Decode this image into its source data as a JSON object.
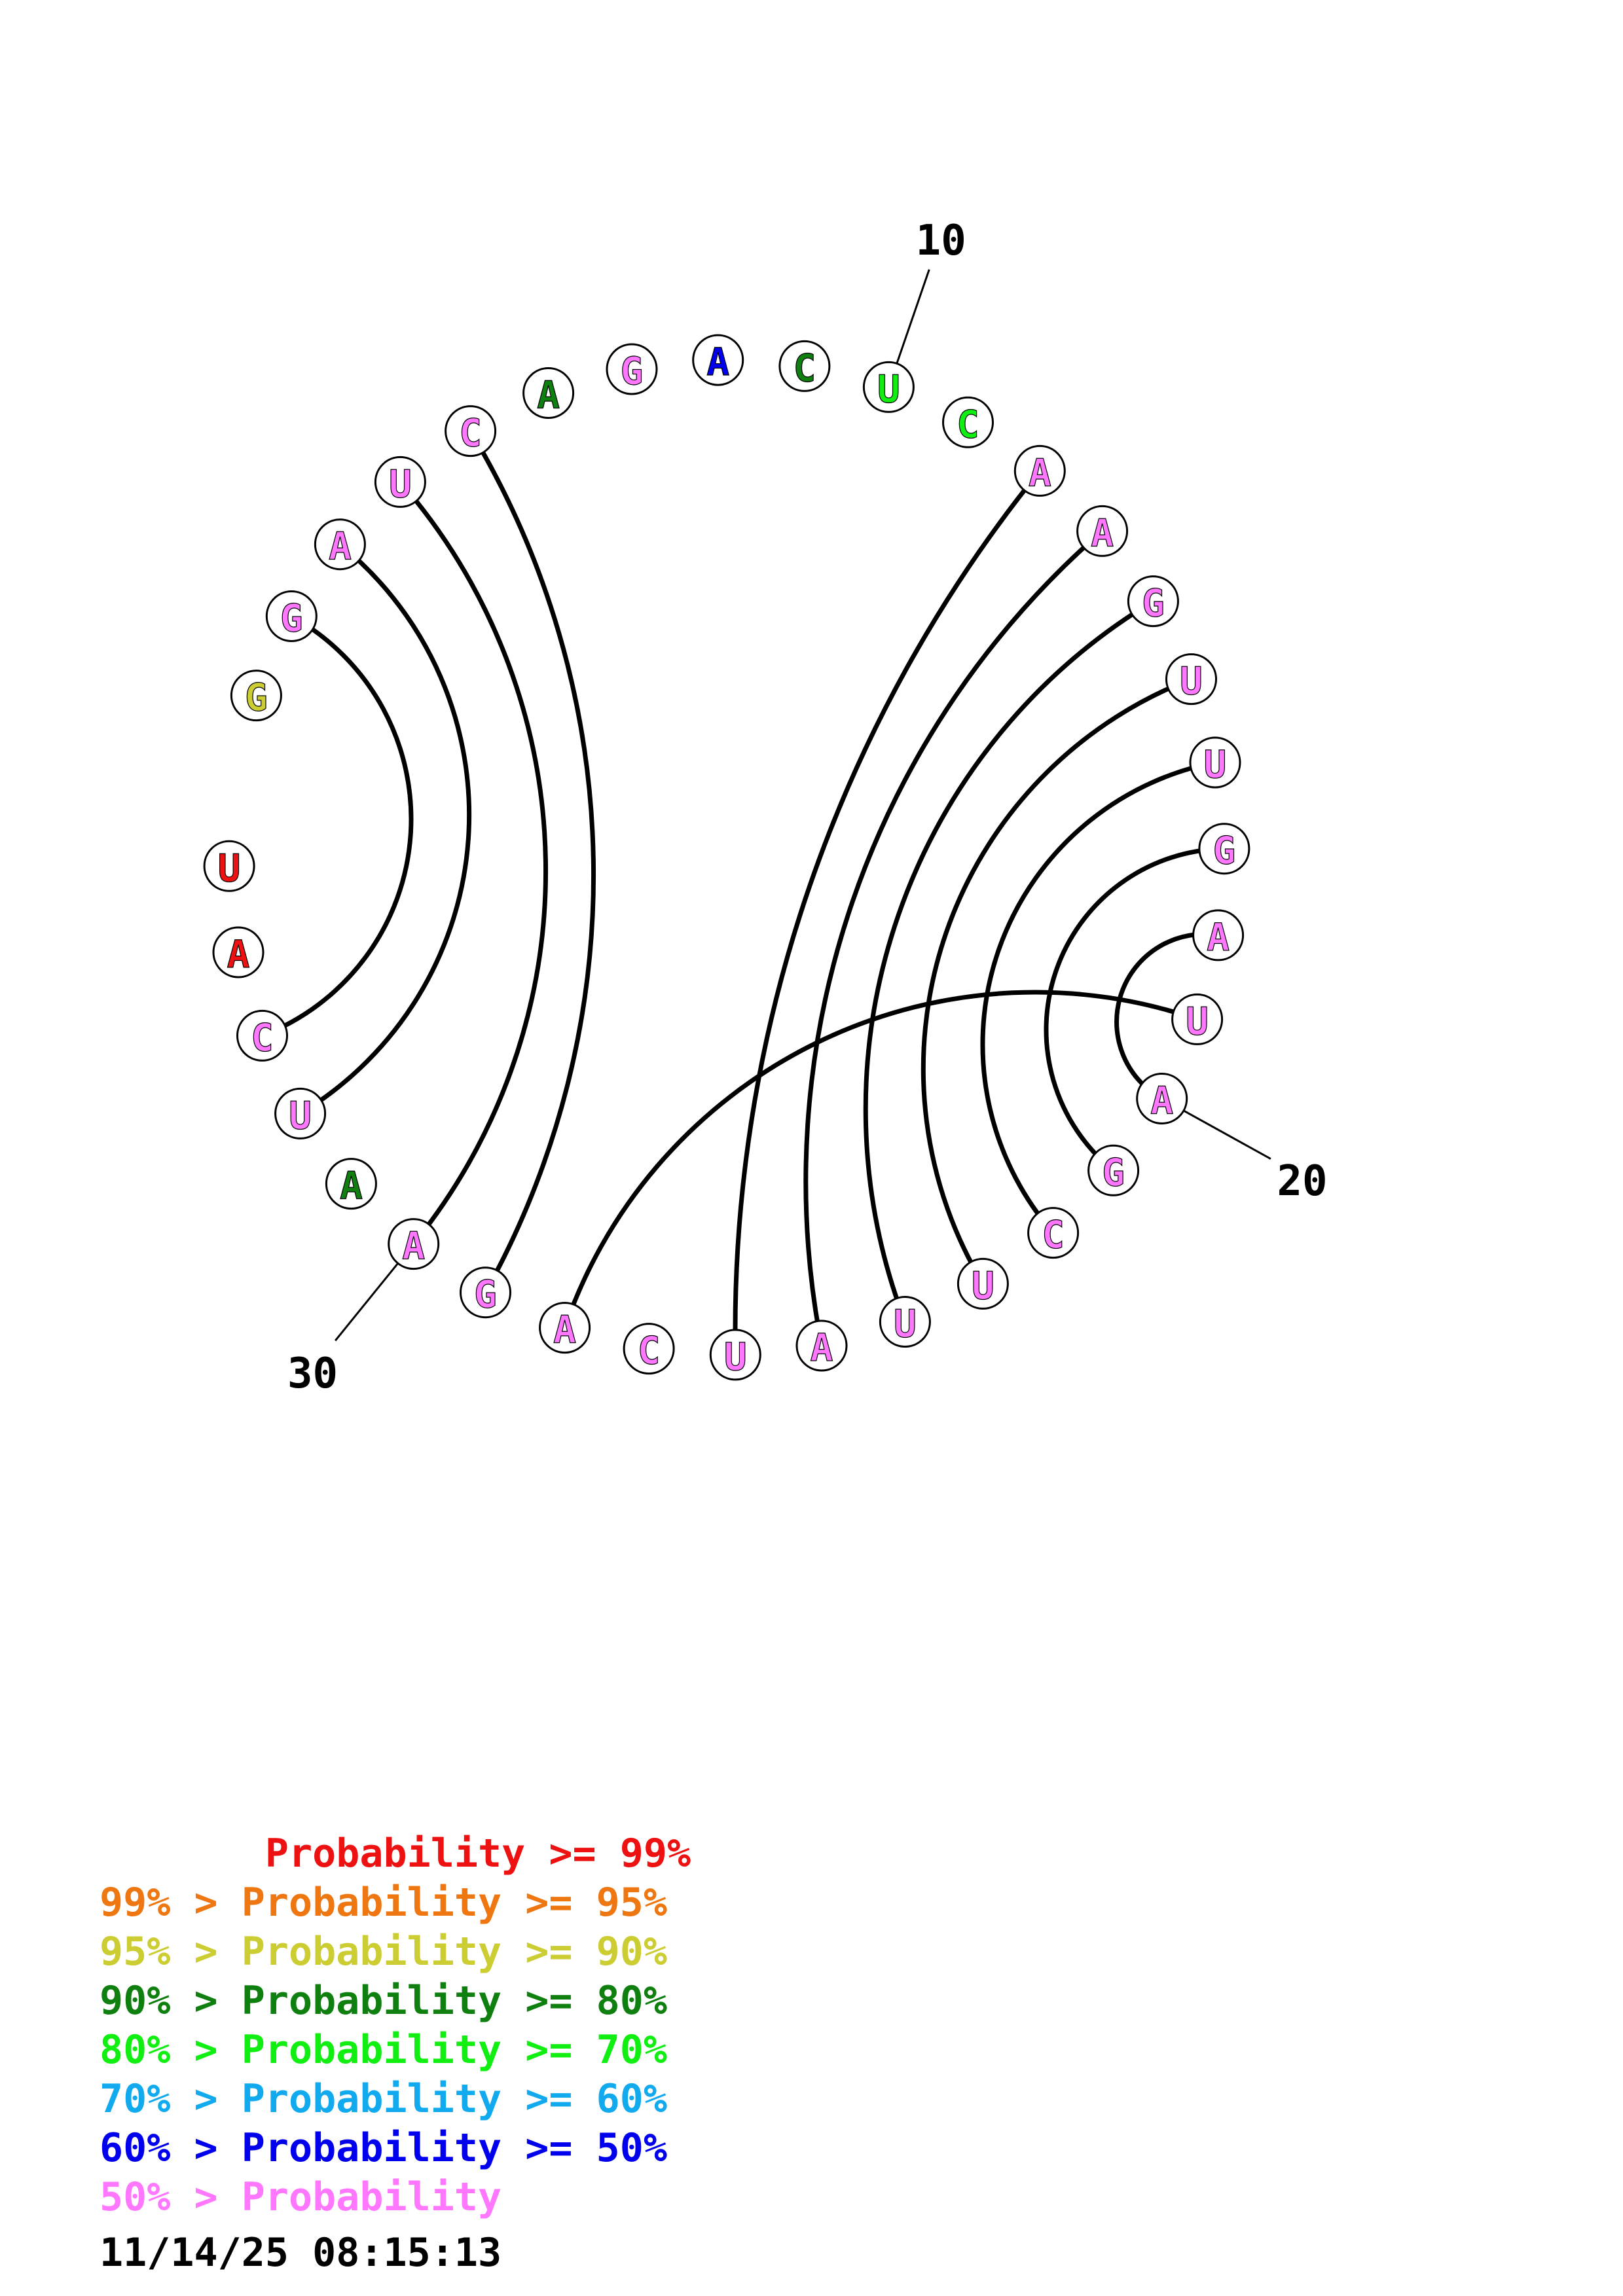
{
  "sequence": {
    "bases": [
      {
        "n": 1,
        "nt": "G",
        "color": "#cccc33"
      },
      {
        "n": 2,
        "nt": "G",
        "color": "#ff77ff"
      },
      {
        "n": 3,
        "nt": "A",
        "color": "#ff77ff"
      },
      {
        "n": 4,
        "nt": "U",
        "color": "#ff77ff"
      },
      {
        "n": 5,
        "nt": "C",
        "color": "#ff77ff"
      },
      {
        "n": 6,
        "nt": "A",
        "color": "#0f7f0f"
      },
      {
        "n": 7,
        "nt": "G",
        "color": "#ff77ff"
      },
      {
        "n": 8,
        "nt": "A",
        "color": "#0000ee"
      },
      {
        "n": 9,
        "nt": "C",
        "color": "#0f7f0f"
      },
      {
        "n": 10,
        "nt": "U",
        "color": "#11ee11"
      },
      {
        "n": 11,
        "nt": "C",
        "color": "#11ee11"
      },
      {
        "n": 12,
        "nt": "A",
        "color": "#ff77ff"
      },
      {
        "n": 13,
        "nt": "A",
        "color": "#ff77ff"
      },
      {
        "n": 14,
        "nt": "G",
        "color": "#ff77ff"
      },
      {
        "n": 15,
        "nt": "U",
        "color": "#ff77ff"
      },
      {
        "n": 16,
        "nt": "U",
        "color": "#ff77ff"
      },
      {
        "n": 17,
        "nt": "G",
        "color": "#ff77ff"
      },
      {
        "n": 18,
        "nt": "A",
        "color": "#ff77ff"
      },
      {
        "n": 19,
        "nt": "U",
        "color": "#ff77ff"
      },
      {
        "n": 20,
        "nt": "A",
        "color": "#ff77ff"
      },
      {
        "n": 21,
        "nt": "G",
        "color": "#ff77ff"
      },
      {
        "n": 22,
        "nt": "C",
        "color": "#ff77ff"
      },
      {
        "n": 23,
        "nt": "U",
        "color": "#ff77ff"
      },
      {
        "n": 24,
        "nt": "U",
        "color": "#ff77ff"
      },
      {
        "n": 25,
        "nt": "A",
        "color": "#ff77ff"
      },
      {
        "n": 26,
        "nt": "U",
        "color": "#ff77ff"
      },
      {
        "n": 27,
        "nt": "C",
        "color": "#ff77ff"
      },
      {
        "n": 28,
        "nt": "A",
        "color": "#ff77ff"
      },
      {
        "n": 29,
        "nt": "G",
        "color": "#ff77ff"
      },
      {
        "n": 30,
        "nt": "A",
        "color": "#ff77ff"
      },
      {
        "n": 31,
        "nt": "A",
        "color": "#0f7f0f"
      },
      {
        "n": 32,
        "nt": "U",
        "color": "#ff77ff"
      },
      {
        "n": 33,
        "nt": "C",
        "color": "#ff77ff"
      },
      {
        "n": 34,
        "nt": "A",
        "color": "#ee1111"
      },
      {
        "n": 35,
        "nt": "U",
        "color": "#ee1111"
      }
    ],
    "pairs": [
      [
        2,
        33
      ],
      [
        3,
        32
      ],
      [
        4,
        30
      ],
      [
        5,
        29
      ],
      [
        12,
        26
      ],
      [
        13,
        25
      ],
      [
        14,
        24
      ],
      [
        15,
        23
      ],
      [
        16,
        22
      ],
      [
        17,
        21
      ],
      [
        18,
        20
      ],
      [
        19,
        28
      ]
    ],
    "tick_labels": [
      {
        "base": 10,
        "text": "10"
      },
      {
        "base": 20,
        "text": "20"
      },
      {
        "base": 30,
        "text": "30"
      }
    ]
  },
  "legend": [
    {
      "text": "       Probability >= 99%",
      "color": "#ee1111"
    },
    {
      "text": "99% > Probability >= 95%",
      "color": "#ee7711"
    },
    {
      "text": "95% > Probability >= 90%",
      "color": "#cccc33"
    },
    {
      "text": "90% > Probability >= 80%",
      "color": "#0f7f0f"
    },
    {
      "text": "80% > Probability >= 70%",
      "color": "#11ee11"
    },
    {
      "text": "70% > Probability >= 60%",
      "color": "#11aaee"
    },
    {
      "text": "60% > Probability >= 50%",
      "color": "#0000ee"
    },
    {
      "text": "50% > Probability",
      "color": "#ff77ff"
    }
  ],
  "timestamp": "11/14/25 08:15:13"
}
